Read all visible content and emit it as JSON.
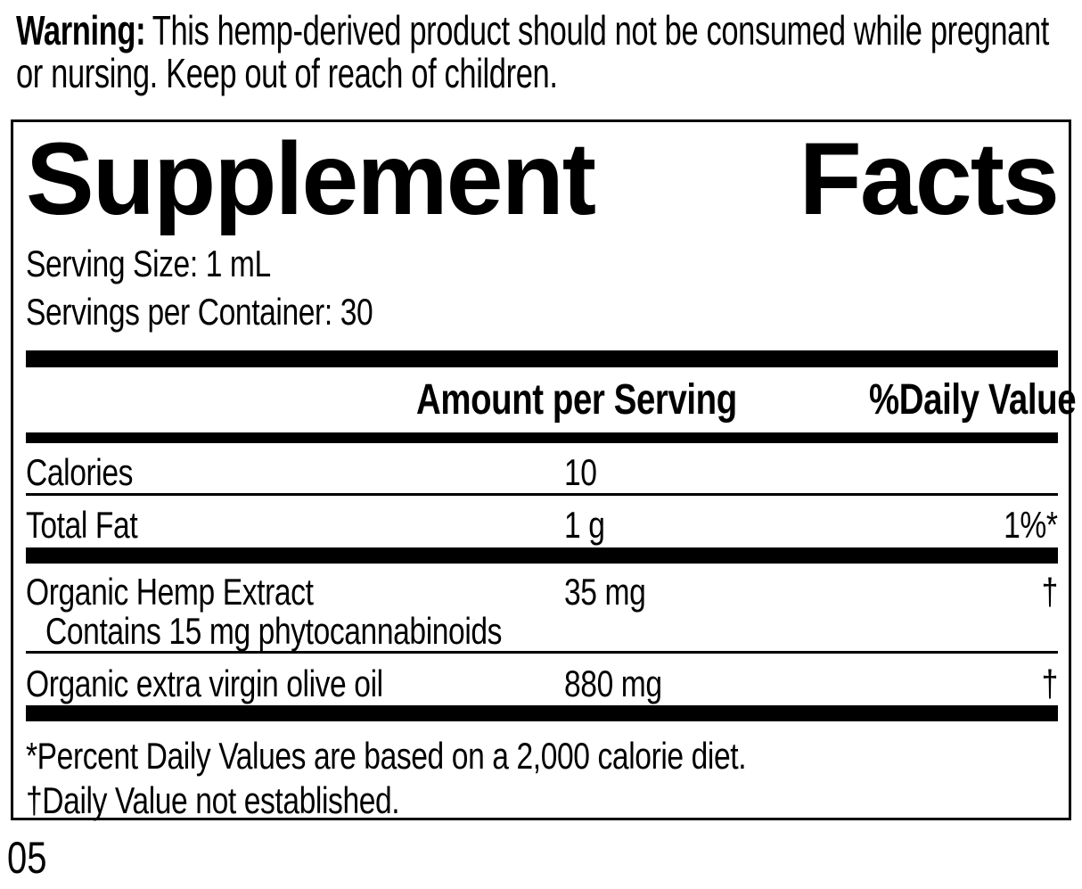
{
  "warning": {
    "label": "Warning:",
    "line1_rest": "This hemp-derived product should not be consumed while pregnant",
    "line2": "or nursing. Keep out of reach of children."
  },
  "panel": {
    "title_left": "Supplement",
    "title_right": "Facts",
    "serving_size": "Serving Size: 1 mL",
    "servings_per_container": "Servings per Container: 30",
    "columns": {
      "amount": "Amount per Serving",
      "daily_value": "%Daily Value"
    },
    "rows": [
      {
        "name": "Calories",
        "amount": "10",
        "dv": ""
      },
      {
        "name": "Total Fat",
        "amount": "1 g",
        "dv": "1%*"
      },
      {
        "name": "Organic Hemp Extract",
        "sub": "Contains 15 mg phytocannabinoids",
        "amount": "35 mg",
        "dv": "†"
      },
      {
        "name": "Organic extra virgin olive oil",
        "amount": "880 mg",
        "dv": "†"
      }
    ],
    "footnotes": [
      "*Percent Daily Values are based on a 2,000 calorie diet.",
      "†Daily Value not established."
    ]
  },
  "page_code": "05",
  "colors": {
    "ink": "#000000",
    "paper": "#ffffff"
  }
}
